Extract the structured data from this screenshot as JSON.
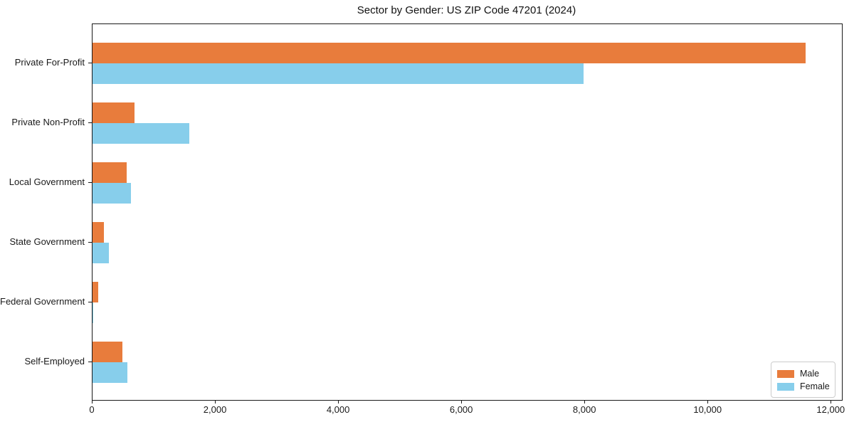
{
  "chart_data": {
    "type": "bar",
    "orientation": "horizontal",
    "title": "Sector by Gender: US ZIP Code 47201 (2024)",
    "categories": [
      "Private For-Profit",
      "Private Non-Profit",
      "Local Government",
      "State Government",
      "Federal Government",
      "Self-Employed"
    ],
    "series": [
      {
        "name": "Male",
        "color": "#e87c3c",
        "values": [
          11580,
          680,
          560,
          180,
          90,
          490
        ]
      },
      {
        "name": "Female",
        "color": "#87ceeb",
        "values": [
          7980,
          1570,
          620,
          270,
          15,
          570
        ]
      }
    ],
    "xlabel": "",
    "ylabel": "",
    "xlim": [
      0,
      12170
    ],
    "xticks": [
      {
        "value": 0,
        "label": "0"
      },
      {
        "value": 2000,
        "label": "2,000"
      },
      {
        "value": 4000,
        "label": "4,000"
      },
      {
        "value": 6000,
        "label": "6,000"
      },
      {
        "value": 8000,
        "label": "8,000"
      },
      {
        "value": 10000,
        "label": "10,000"
      },
      {
        "value": 12000,
        "label": "12,000"
      }
    ],
    "grid": false,
    "legend_position": "lower right",
    "legend": [
      {
        "label": "Male",
        "color": "#e87c3c"
      },
      {
        "label": "Female",
        "color": "#87ceeb"
      }
    ]
  }
}
